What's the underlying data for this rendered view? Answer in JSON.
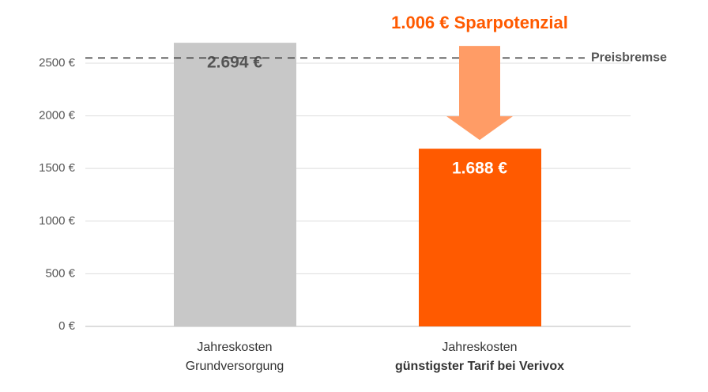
{
  "chart_data": {
    "type": "bar",
    "categories": [
      [
        "Jahreskosten",
        "Grundversorgung"
      ],
      [
        "Jahreskosten",
        "günstigster Tarif bei Verivox"
      ]
    ],
    "values": [
      2694,
      1688
    ],
    "value_labels": [
      "2.694 €",
      "1.688 €"
    ],
    "colors": [
      "#c8c8c8",
      "#ff5a00"
    ],
    "ylim": [
      0,
      2800
    ],
    "yticks": [
      {
        "value": 0,
        "label": "0 €"
      },
      {
        "value": 500,
        "label": "500 €"
      },
      {
        "value": 1000,
        "label": "1000 €"
      },
      {
        "value": 1500,
        "label": "1500 €"
      },
      {
        "value": 2000,
        "label": "2000 €"
      },
      {
        "value": 2500,
        "label": "2500 €"
      }
    ],
    "grid": true,
    "threshold": {
      "value": 2550,
      "label": "Preisbremse"
    },
    "savings": {
      "value": 1006,
      "label": "1.006 € Sparpotenzial",
      "color": "#ff9c66",
      "label_color": "#ff5a00"
    }
  }
}
